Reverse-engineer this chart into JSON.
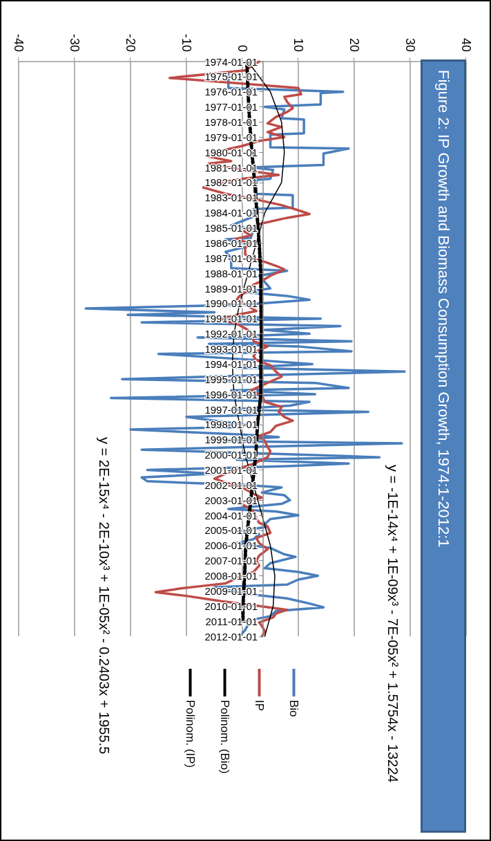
{
  "chart_data": {
    "type": "line",
    "title": "Figure 2: IP Growth and Biomass Consumption Growth, 1974:1-2012:1",
    "orientation": "horizontal",
    "ylim": [
      "2012-01-01",
      "1974-01-01"
    ],
    "yticks": [
      "1974-01-01",
      "1975-01-01",
      "1976-01-01",
      "1977-01-01",
      "1978-01-01",
      "1979-01-01",
      "1980-01-01",
      "1981-01-01",
      "1982-01-01",
      "1983-01-01",
      "1984-01-01",
      "1985-01-01",
      "1986-01-01",
      "1987-01-01",
      "1988-01-01",
      "1989-01-01",
      "1990-01-01",
      "1991-01-01",
      "1992-01-01",
      "1993-01-01",
      "1994-01-01",
      "1995-01-01",
      "1996-01-01",
      "1997-01-01",
      "1998-01-01",
      "1999-01-01",
      "2000-01-01",
      "2001-01-01",
      "2002-01-01",
      "2003-01-01",
      "2004-01-01",
      "2005-01-01",
      "2006-01-01",
      "2007-01-01",
      "2008-01-01",
      "2009-01-01",
      "2010-01-01",
      "2011-01-01",
      "2012-01-01"
    ],
    "xlim": [
      -40,
      40
    ],
    "xticks": [
      -40,
      -30,
      -20,
      -10,
      0,
      10,
      20,
      30,
      40
    ],
    "grid": "x",
    "legend": "right",
    "marker": "none",
    "series": [
      {
        "name": "Bio",
        "color": "#4a7ebb",
        "line_style": "solid",
        "x": [
          "1974-11",
          "1975-10",
          "1976-01",
          "1976-02",
          "1976-11",
          "1977-01",
          "1977-03",
          "1977-10",
          "1977-11",
          "1978-10",
          "1978-11",
          "1979-09",
          "1979-10",
          "1980-02",
          "1980-11",
          "1981-01",
          "1981-03",
          "1981-10",
          "1981-11",
          "1982-10",
          "1982-11",
          "1983-09",
          "1983-10",
          "1984-04",
          "1984-11",
          "1985-02",
          "1985-09",
          "1985-10",
          "1986-03",
          "1986-08",
          "1987-01",
          "1987-09",
          "1987-11",
          "1988-03",
          "1988-08",
          "1989-01",
          "1989-04",
          "1989-07",
          "1989-10",
          "1990-02",
          "1990-05",
          "1990-08",
          "1990-10",
          "1991-01",
          "1991-04",
          "1991-07",
          "1991-10",
          "1992-01",
          "1992-04",
          "1992-07",
          "1992-09",
          "1992-11",
          "1993-03",
          "1993-05",
          "1993-10",
          "1994-01",
          "1994-04",
          "1994-07",
          "1994-10",
          "1995-01",
          "1995-04",
          "1995-08",
          "1995-10",
          "1996-01",
          "1996-04",
          "1996-07",
          "1996-10",
          "1997-01",
          "1997-03",
          "1997-07",
          "1997-10",
          "1998-01",
          "1998-03",
          "1998-05",
          "1998-09",
          "1998-11",
          "1999-02",
          "1999-04",
          "1999-07",
          "1999-09",
          "2000-01",
          "2000-03",
          "2000-05",
          "2000-08",
          "2000-10",
          "2001-01",
          "2001-04",
          "2001-07",
          "2001-10",
          "2002-01",
          "2002-03",
          "2002-07",
          "2002-09",
          "2003-01",
          "2003-04",
          "2003-08",
          "2003-10",
          "2004-01",
          "2004-04",
          "2004-08",
          "2004-10",
          "2005-02",
          "2005-04",
          "2005-08",
          "2005-11",
          "2006-03",
          "2006-08",
          "2006-10",
          "2007-03",
          "2007-07",
          "2007-10",
          "2008-01",
          "2008-04",
          "2008-08",
          "2008-10",
          "2009-03",
          "2009-07",
          "2009-11",
          "2010-02",
          "2010-05",
          "2010-09",
          "2011-01",
          "2011-04",
          "2011-08",
          "2012-01"
        ],
        "values": [
          -2.5,
          -2.5,
          18,
          14,
          14,
          4,
          7.5,
          7,
          11,
          11,
          5,
          5,
          19,
          14.5,
          14.5,
          1.5,
          5.5,
          5,
          2.5,
          2.5,
          9,
          9,
          2,
          2,
          -2,
          2,
          1.5,
          -3,
          1.5,
          -3,
          -2,
          -2,
          8,
          3,
          4,
          5,
          0.5,
          8,
          12,
          0,
          -28,
          -5,
          -20.5,
          14,
          -18,
          17.5,
          4,
          12,
          -8,
          19.5,
          -6,
          10,
          19.5,
          -15,
          3,
          12.5,
          -1,
          29,
          2,
          -21.5,
          13,
          19,
          -2,
          13,
          -23.5,
          12,
          8.5,
          -2,
          22.5,
          -10,
          -5,
          0.5,
          0,
          -20,
          0.5,
          6.5,
          -6,
          28.5,
          0,
          -18,
          11,
          24.5,
          -1,
          19,
          8,
          -17,
          -5,
          -18,
          -17,
          0.5,
          7,
          3.5,
          7.5,
          8.5,
          7,
          -2.5,
          6,
          10,
          5,
          4,
          4.5,
          -1,
          3,
          2,
          -1,
          5,
          7.5,
          9.5,
          5,
          4,
          10,
          13.5,
          10,
          8,
          -5,
          0,
          8,
          12,
          14.5,
          6,
          5,
          0.5,
          1,
          0.5,
          -0.5
        ]
      },
      {
        "name": "IP",
        "color": "#be4b48",
        "line_style": "solid",
        "x": [
          "1974-01",
          "1974-08",
          "1975-02",
          "1975-10",
          "1976-03",
          "1976-05",
          "1976-09",
          "1977-02",
          "1977-05",
          "1977-09",
          "1978-02",
          "1978-05",
          "1978-09",
          "1979-01",
          "1979-04",
          "1979-08",
          "1979-11",
          "1980-04",
          "1980-08",
          "1980-10",
          "1981-03",
          "1981-07",
          "1981-10",
          "1982-02",
          "1982-05",
          "1982-10",
          "1983-03",
          "1983-07",
          "1983-11",
          "1984-02",
          "1984-05",
          "1984-10",
          "1985-03",
          "1985-07",
          "1985-10",
          "1986-01",
          "1986-05",
          "1986-10",
          "1987-01",
          "1987-04",
          "1987-08",
          "1987-10",
          "1988-03",
          "1988-07",
          "1988-10",
          "1989-03",
          "1989-07",
          "1989-10",
          "1990-03",
          "1990-07",
          "1990-10",
          "1991-02",
          "1991-05",
          "1991-10",
          "1992-02",
          "1992-07",
          "1992-11",
          "1993-03",
          "1993-07",
          "1993-10",
          "1994-02",
          "1994-07",
          "1994-11",
          "1995-03",
          "1995-07",
          "1995-10",
          "1996-02",
          "1996-07",
          "1996-11",
          "1997-03",
          "1997-07",
          "1997-10",
          "1998-02",
          "1998-07",
          "1998-10",
          "1999-02",
          "1999-07",
          "1999-10",
          "2000-03",
          "2000-08",
          "2000-11",
          "2001-04",
          "2001-08",
          "2001-11",
          "2002-03",
          "2002-08",
          "2002-11",
          "2003-03",
          "2003-07",
          "2003-10",
          "2004-03",
          "2004-07",
          "2004-10",
          "2005-03",
          "2005-07",
          "2005-11",
          "2006-04",
          "2006-09",
          "2007-01",
          "2007-05",
          "2007-10",
          "2008-03",
          "2008-07",
          "2008-09",
          "2008-11",
          "2009-02",
          "2009-05",
          "2009-09",
          "2010-01",
          "2010-04",
          "2010-07",
          "2010-10",
          "2011-02",
          "2011-05",
          "2011-09",
          "2012-01"
        ],
        "values": [
          3,
          0.5,
          -13,
          10,
          10.5,
          7.5,
          8,
          9,
          8,
          6,
          4.5,
          7,
          4.5,
          7.5,
          3,
          0,
          -3,
          -6.5,
          -2,
          -6,
          0,
          6.5,
          0,
          -5,
          -7,
          -3,
          3,
          7,
          10,
          12,
          8,
          3,
          0,
          1.5,
          -1.5,
          1.5,
          0.5,
          0.5,
          1.5,
          4,
          6.5,
          7.5,
          5,
          3.5,
          2,
          1,
          -0.5,
          -1,
          1,
          2.5,
          -1,
          -4,
          -1,
          1,
          2,
          2,
          4.5,
          2.5,
          2,
          2.5,
          5,
          6,
          7,
          5,
          3,
          1.5,
          3.5,
          4,
          7,
          6.5,
          7.5,
          9,
          6,
          5,
          3,
          4,
          4.5,
          5,
          4.5,
          2,
          0,
          -3,
          -5,
          -3,
          0,
          2,
          3.5,
          -0.5,
          1,
          2,
          2.5,
          3,
          4.5,
          5,
          2.5,
          3,
          4.5,
          3,
          2.5,
          3,
          2,
          -1,
          -3,
          -7,
          -11,
          -15.5,
          -10,
          -4,
          3,
          8,
          6,
          5.5,
          3,
          3.5,
          4,
          3.5
        ]
      },
      {
        "name": "Polinom. (Bio)",
        "color": "#000000",
        "line_style": "solid",
        "x": [
          "1974-01",
          "1976-01",
          "1978-01",
          "1980-01",
          "1982-01",
          "1984-01",
          "1986-01",
          "1988-01",
          "1990-01",
          "1992-01",
          "1994-01",
          "1996-01",
          "1998-01",
          "2000-01",
          "2002-01",
          "2004-01",
          "2006-01",
          "2008-01",
          "2010-01",
          "2012-01"
        ],
        "values": [
          1,
          5,
          7,
          7.5,
          7,
          4,
          2.5,
          1,
          -0.5,
          -1.5,
          -1.8,
          -1.5,
          -0.5,
          0.5,
          2,
          3.5,
          5,
          5.8,
          5.5,
          4
        ]
      },
      {
        "name": "Polinom. (IP)",
        "color": "#000000",
        "line_style": "dashed",
        "x": [
          "1974-01",
          "1976-01",
          "1978-01",
          "1980-01",
          "1982-01",
          "1984-01",
          "1986-01",
          "1988-01",
          "1990-01",
          "1992-01",
          "1994-01",
          "1996-01",
          "1998-01",
          "2000-01",
          "2002-01",
          "2004-01",
          "2006-01",
          "2008-01",
          "2010-01",
          "2011-01"
        ],
        "values": [
          0.8,
          1,
          1.3,
          1.7,
          2.2,
          2.6,
          3,
          3.3,
          3.3,
          3.4,
          3.3,
          3.3,
          2.7,
          2.4,
          1.8,
          1.2,
          0.6,
          0.4,
          0.1,
          0.1
        ]
      }
    ],
    "annotations": [
      "y = -1E-14x⁴ + 1E-09x³ - 7E-05x² + 1.5754x - 13224",
      "y = 2E-15x⁴ - 2E-10x³ + 1E-05x² - 0.2403x + 1955.5"
    ]
  }
}
